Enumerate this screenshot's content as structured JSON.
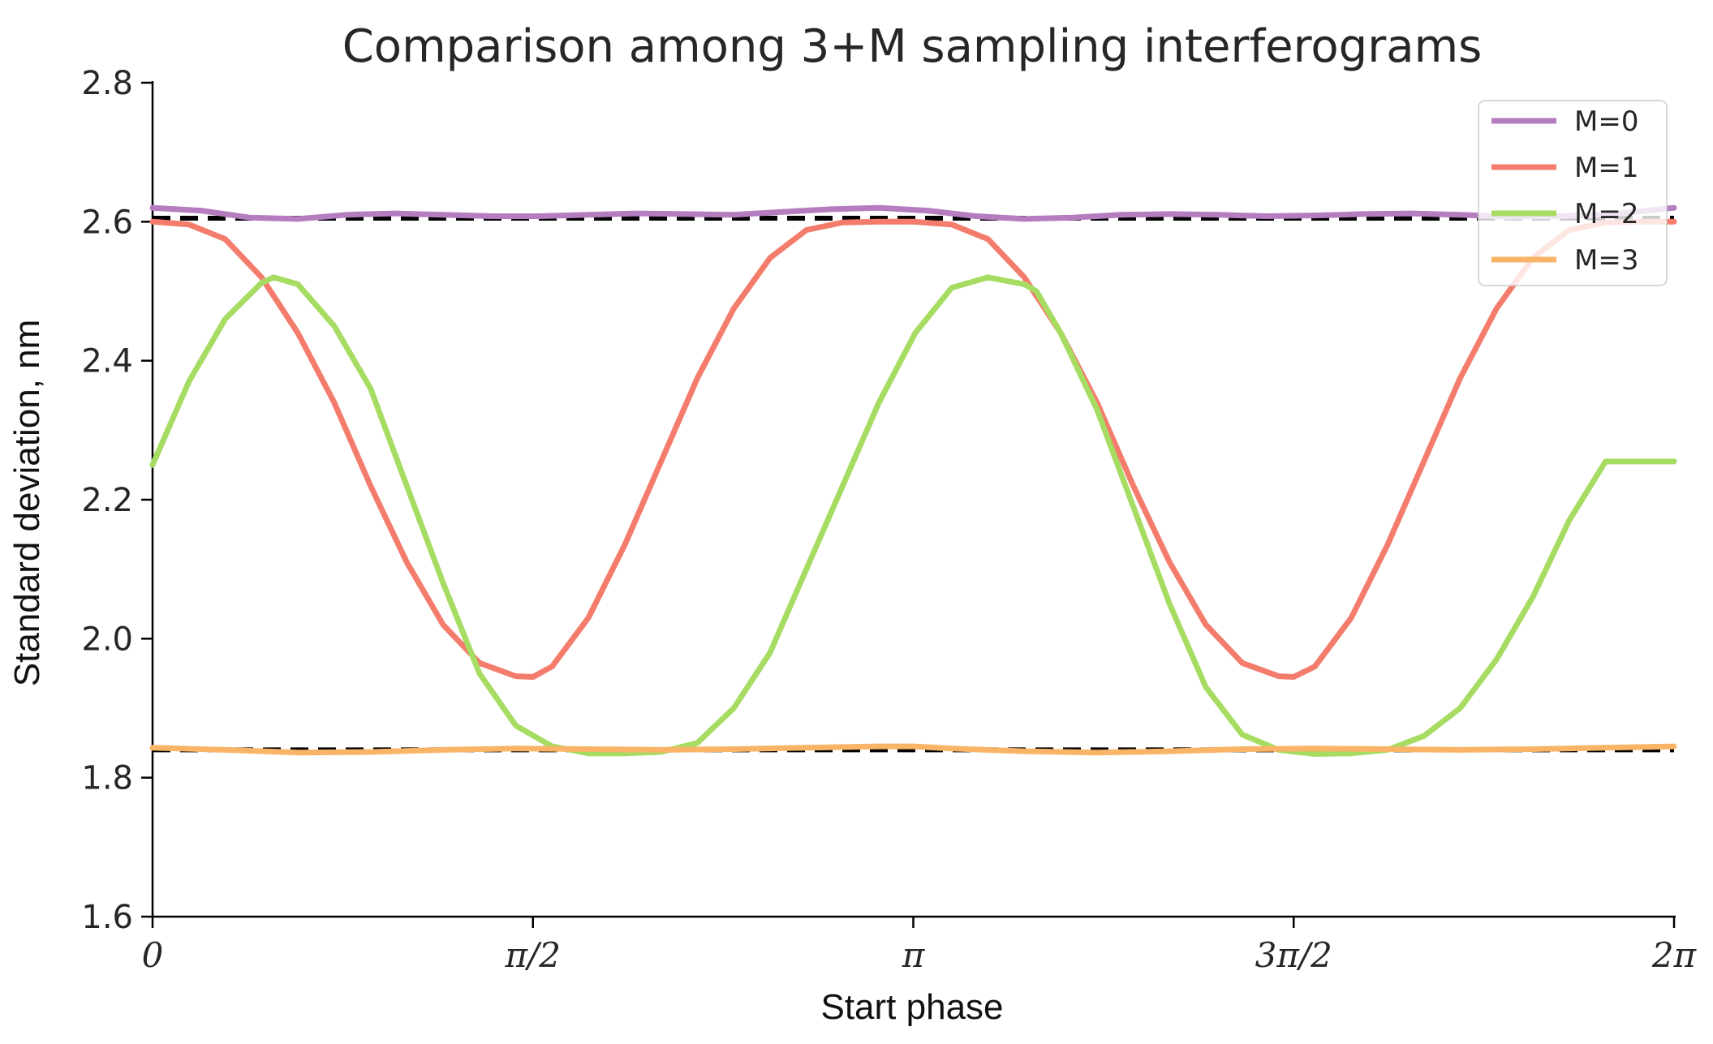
{
  "chart_data": {
    "type": "line",
    "title": "Comparison among 3+M sampling interferograms",
    "xlabel": "Start phase",
    "ylabel": "Standard deviation, nm",
    "xlim": [
      0,
      6.2832
    ],
    "ylim": [
      1.6,
      2.8
    ],
    "xticks": [
      0,
      1.5708,
      3.1416,
      4.7124,
      6.2832
    ],
    "xtick_labels": [
      "0",
      "π/2",
      "π",
      "3π/2",
      "2π"
    ],
    "yticks": [
      1.6,
      1.8,
      2.0,
      2.2,
      2.4,
      2.6,
      2.8
    ],
    "ytick_labels": [
      "1.6",
      "1.8",
      "2.0",
      "2.2",
      "2.4",
      "2.6",
      "2.8"
    ],
    "grid": false,
    "legend_position": "top-right",
    "series": [
      {
        "name": "M=0",
        "color": "#b57cbf",
        "x": [
          0,
          0.2,
          0.4,
          0.6,
          0.8,
          1.0,
          1.2,
          1.4,
          1.6,
          1.8,
          2.0,
          2.2,
          2.4,
          2.6,
          2.8,
          3.0,
          3.2,
          3.4,
          3.6,
          3.8,
          4.0,
          4.2,
          4.4,
          4.6,
          4.8,
          5.0,
          5.2,
          5.4,
          5.6,
          5.8,
          6.0,
          6.2832
        ],
        "y": [
          2.62,
          2.616,
          2.606,
          2.604,
          2.61,
          2.612,
          2.61,
          2.608,
          2.608,
          2.61,
          2.612,
          2.611,
          2.61,
          2.614,
          2.618,
          2.62,
          2.616,
          2.608,
          2.604,
          2.606,
          2.61,
          2.611,
          2.61,
          2.608,
          2.609,
          2.611,
          2.612,
          2.61,
          2.607,
          2.608,
          2.61,
          2.62
        ]
      },
      {
        "name": "M=1",
        "color": "#f47c6c",
        "x": [
          0,
          0.15,
          0.3,
          0.45,
          0.6,
          0.75,
          0.9,
          1.05,
          1.2,
          1.35,
          1.5,
          1.5708,
          1.65,
          1.8,
          1.95,
          2.1,
          2.25,
          2.4,
          2.55,
          2.7,
          2.85,
          3.0,
          3.1416,
          3.3,
          3.45,
          3.6,
          3.75,
          3.9,
          4.05,
          4.2,
          4.35,
          4.5,
          4.65,
          4.7124,
          4.8,
          4.95,
          5.1,
          5.25,
          5.4,
          5.55,
          5.7,
          5.85,
          6.0,
          6.15,
          6.2832
        ],
        "y": [
          2.6,
          2.596,
          2.575,
          2.52,
          2.44,
          2.34,
          2.22,
          2.11,
          2.02,
          1.965,
          1.946,
          1.945,
          1.96,
          2.03,
          2.135,
          2.255,
          2.375,
          2.475,
          2.548,
          2.588,
          2.599,
          2.6,
          2.6,
          2.596,
          2.575,
          2.52,
          2.44,
          2.34,
          2.22,
          2.11,
          2.02,
          1.965,
          1.946,
          1.945,
          1.96,
          2.03,
          2.135,
          2.255,
          2.375,
          2.475,
          2.548,
          2.588,
          2.599,
          2.6,
          2.6
        ]
      },
      {
        "name": "M=2",
        "color": "#a6dc62",
        "x": [
          0,
          0.15,
          0.3,
          0.45,
          0.5,
          0.6,
          0.75,
          0.9,
          1.05,
          1.2,
          1.35,
          1.5,
          1.65,
          1.8,
          1.95,
          2.1,
          2.25,
          2.4,
          2.55,
          2.7,
          2.85,
          3.0,
          3.15,
          3.3,
          3.45,
          3.6,
          3.65,
          3.75,
          3.9,
          4.05,
          4.2,
          4.35,
          4.5,
          4.65,
          4.8,
          4.95,
          5.1,
          5.25,
          5.4,
          5.55,
          5.7,
          5.85,
          6.0,
          6.15,
          6.2832
        ],
        "y": [
          2.25,
          2.37,
          2.46,
          2.512,
          2.52,
          2.51,
          2.45,
          2.36,
          2.22,
          2.08,
          1.95,
          1.875,
          1.845,
          1.835,
          1.835,
          1.837,
          1.85,
          1.9,
          1.98,
          2.1,
          2.22,
          2.34,
          2.44,
          2.505,
          2.52,
          2.51,
          2.5,
          2.44,
          2.33,
          2.19,
          2.05,
          1.93,
          1.862,
          1.84,
          1.834,
          1.835,
          1.84,
          1.86,
          1.9,
          1.97,
          2.06,
          2.17,
          2.255,
          2.255,
          2.255
        ]
      },
      {
        "name": "M=3",
        "color": "#f9b467",
        "x": [
          0,
          0.3,
          0.6,
          0.9,
          1.2,
          1.5,
          1.8,
          2.1,
          2.4,
          2.7,
          3.0,
          3.1416,
          3.3,
          3.6,
          3.9,
          4.2,
          4.5,
          4.8,
          5.1,
          5.4,
          5.7,
          6.0,
          6.2832
        ],
        "y": [
          1.843,
          1.84,
          1.836,
          1.837,
          1.84,
          1.842,
          1.841,
          1.84,
          1.841,
          1.843,
          1.845,
          1.845,
          1.842,
          1.838,
          1.836,
          1.838,
          1.841,
          1.842,
          1.841,
          1.84,
          1.841,
          1.843,
          1.845
        ]
      }
    ],
    "reference_lines": [
      {
        "y": 2.605,
        "color": "#000000",
        "style": "dashed"
      },
      {
        "y": 1.84,
        "color": "#000000",
        "style": "dashed"
      }
    ]
  }
}
